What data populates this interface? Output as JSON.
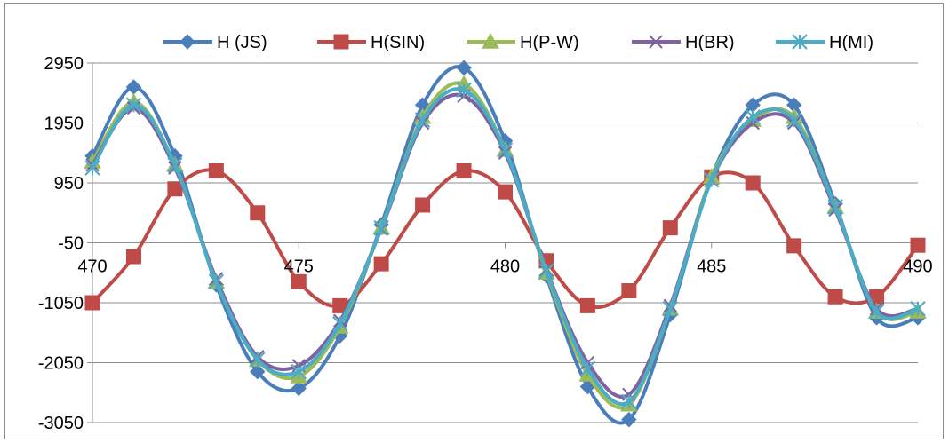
{
  "chart_data": {
    "type": "line",
    "title": "",
    "xlabel": "",
    "ylabel": "",
    "xlim": [
      470,
      490
    ],
    "ylim": [
      -3050,
      2950
    ],
    "xticks": [
      470,
      475,
      480,
      485,
      490
    ],
    "xtick_labels": [
      "470",
      "475",
      "480",
      "485",
      "490"
    ],
    "yticks": [
      2950,
      1950,
      950,
      -50,
      -1050,
      -2050,
      -3050
    ],
    "ytick_labels": [
      "2950",
      "1950",
      "950",
      "-50",
      "-1050",
      "-2050",
      "-3050"
    ],
    "grid": "horizontal",
    "legend_position": "top",
    "smooth": true,
    "x": [
      470,
      471,
      472,
      473,
      474,
      475,
      476,
      477,
      478,
      479,
      480,
      481,
      482,
      483,
      484,
      485,
      486,
      487,
      488,
      489,
      490
    ],
    "series": [
      {
        "name": "H (JS)",
        "color": "#4a7ebb",
        "marker": "diamond",
        "values": [
          1400,
          2550,
          1400,
          -750,
          -2200,
          -2480,
          -1600,
          250,
          2250,
          2870,
          1650,
          -600,
          -2450,
          -3000,
          -1250,
          1050,
          2250,
          2250,
          600,
          -1300,
          -1300
        ]
      },
      {
        "name": "H(SIN)",
        "color": "#be4b48",
        "marker": "square",
        "values": [
          -1050,
          -280,
          850,
          1150,
          450,
          -700,
          -1100,
          -400,
          580,
          1150,
          800,
          -350,
          -1100,
          -850,
          200,
          1050,
          950,
          -100,
          -950,
          -950,
          -90
        ]
      },
      {
        "name": "H(P-W)",
        "color": "#9bbb59",
        "marker": "triangle",
        "values": [
          1300,
          2300,
          1250,
          -700,
          -2000,
          -2280,
          -1450,
          200,
          2050,
          2600,
          1500,
          -550,
          -2250,
          -2750,
          -1150,
          1050,
          2000,
          2050,
          550,
          -1200,
          -1200
        ]
      },
      {
        "name": "H(BR)",
        "color": "#7f63a1",
        "marker": "x",
        "values": [
          1250,
          2200,
          1200,
          -650,
          -1950,
          -2100,
          -1350,
          180,
          1950,
          2400,
          1450,
          -500,
          -2050,
          -2580,
          -1100,
          1000,
          1950,
          1950,
          500,
          -1150,
          -1150
        ]
      },
      {
        "name": "H(MI)",
        "color": "#4bacc6",
        "marker": "asterisk",
        "values": [
          1200,
          2250,
          1250,
          -700,
          -2000,
          -2200,
          -1400,
          200,
          2000,
          2500,
          1500,
          -520,
          -2150,
          -2700,
          -1150,
          1000,
          2050,
          2000,
          550,
          -1200,
          -1150
        ]
      }
    ]
  }
}
